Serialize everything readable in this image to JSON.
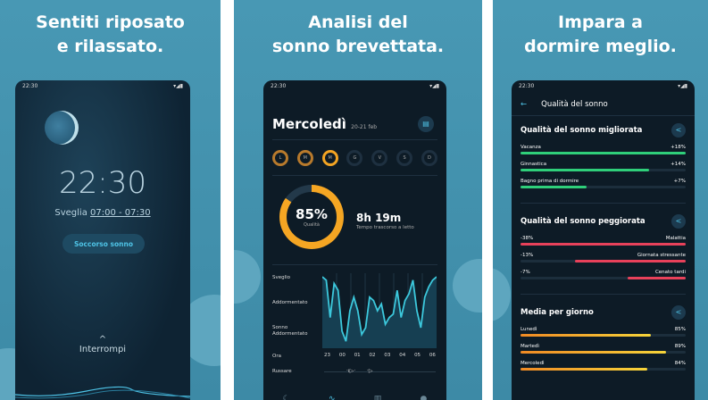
{
  "panels": [
    {
      "headline": [
        "Sentiti riposato",
        "e rilassato."
      ],
      "status_time": "22:30",
      "clock": "22:30",
      "wake_label": "Sveglia",
      "wake_range": "07:00 - 07:30",
      "sleep_aid_button": "Soccorso sonno",
      "stop_label": "Interrompi"
    },
    {
      "headline": [
        "Analisi del",
        "sonno brevettata."
      ],
      "status_time": "22:30",
      "day": "Mercoledì",
      "date_range": "20-21 feb",
      "weekdays": [
        "L",
        "M",
        "M",
        "G",
        "V",
        "S",
        "D"
      ],
      "quality": "85%",
      "quality_label": "Qualità",
      "time_in_bed": "8h 19m",
      "time_in_bed_label": "Tempo trascorso a letto",
      "y_labels": [
        "Sveglio",
        "Addormentato",
        "Sonno Addormentato"
      ],
      "x_label": "Ora",
      "x_ticks": [
        "23",
        "00",
        "01",
        "02",
        "03",
        "04",
        "05",
        "06"
      ],
      "snore_label": "Russare",
      "hypnogram": [
        0,
        0.05,
        0.6,
        0.1,
        0.2,
        0.8,
        0.95,
        0.5,
        0.3,
        0.5,
        0.85,
        0.75,
        0.3,
        0.35,
        0.5,
        0.4,
        0.7,
        0.6,
        0.55,
        0.2,
        0.6,
        0.35,
        0.25,
        0.05,
        0.5,
        0.75,
        0.3,
        0.15,
        0.05,
        0
      ]
    },
    {
      "headline": [
        "Impara a",
        "dormire meglio."
      ],
      "status_time": "22:30",
      "title": "Qualità del sonno",
      "improved": {
        "title": "Qualità del sonno migliorata",
        "items": [
          {
            "label": "Vacanza",
            "value": "+18%",
            "fraction": 1.0
          },
          {
            "label": "Ginnastica",
            "value": "+14%",
            "fraction": 0.78
          },
          {
            "label": "Bagno prima di dormire",
            "value": "+7%",
            "fraction": 0.4
          }
        ]
      },
      "worsened": {
        "title": "Qualità del sonno peggiorata",
        "items": [
          {
            "label": "Malattia",
            "value": "-38%",
            "fraction": 1.0
          },
          {
            "label": "Giornata stressante",
            "value": "-13%",
            "fraction": 0.67
          },
          {
            "label": "Cenato tardi",
            "value": "-7%",
            "fraction": 0.35
          }
        ]
      },
      "per_day": {
        "title": "Media per giorno",
        "items": [
          {
            "label": "Lunedì",
            "value": "85%",
            "fraction": 0.79
          },
          {
            "label": "Martedì",
            "value": "89%",
            "fraction": 0.88
          },
          {
            "label": "Mercoledì",
            "value": "84%",
            "fraction": 0.77
          }
        ]
      }
    }
  ],
  "colors": {
    "background": "#4597b3",
    "phone": "#0d1b26",
    "accent": "#4ec3e6",
    "good": "#2fcf7a",
    "bad": "#e8415a",
    "avg": "#f3b22a"
  }
}
